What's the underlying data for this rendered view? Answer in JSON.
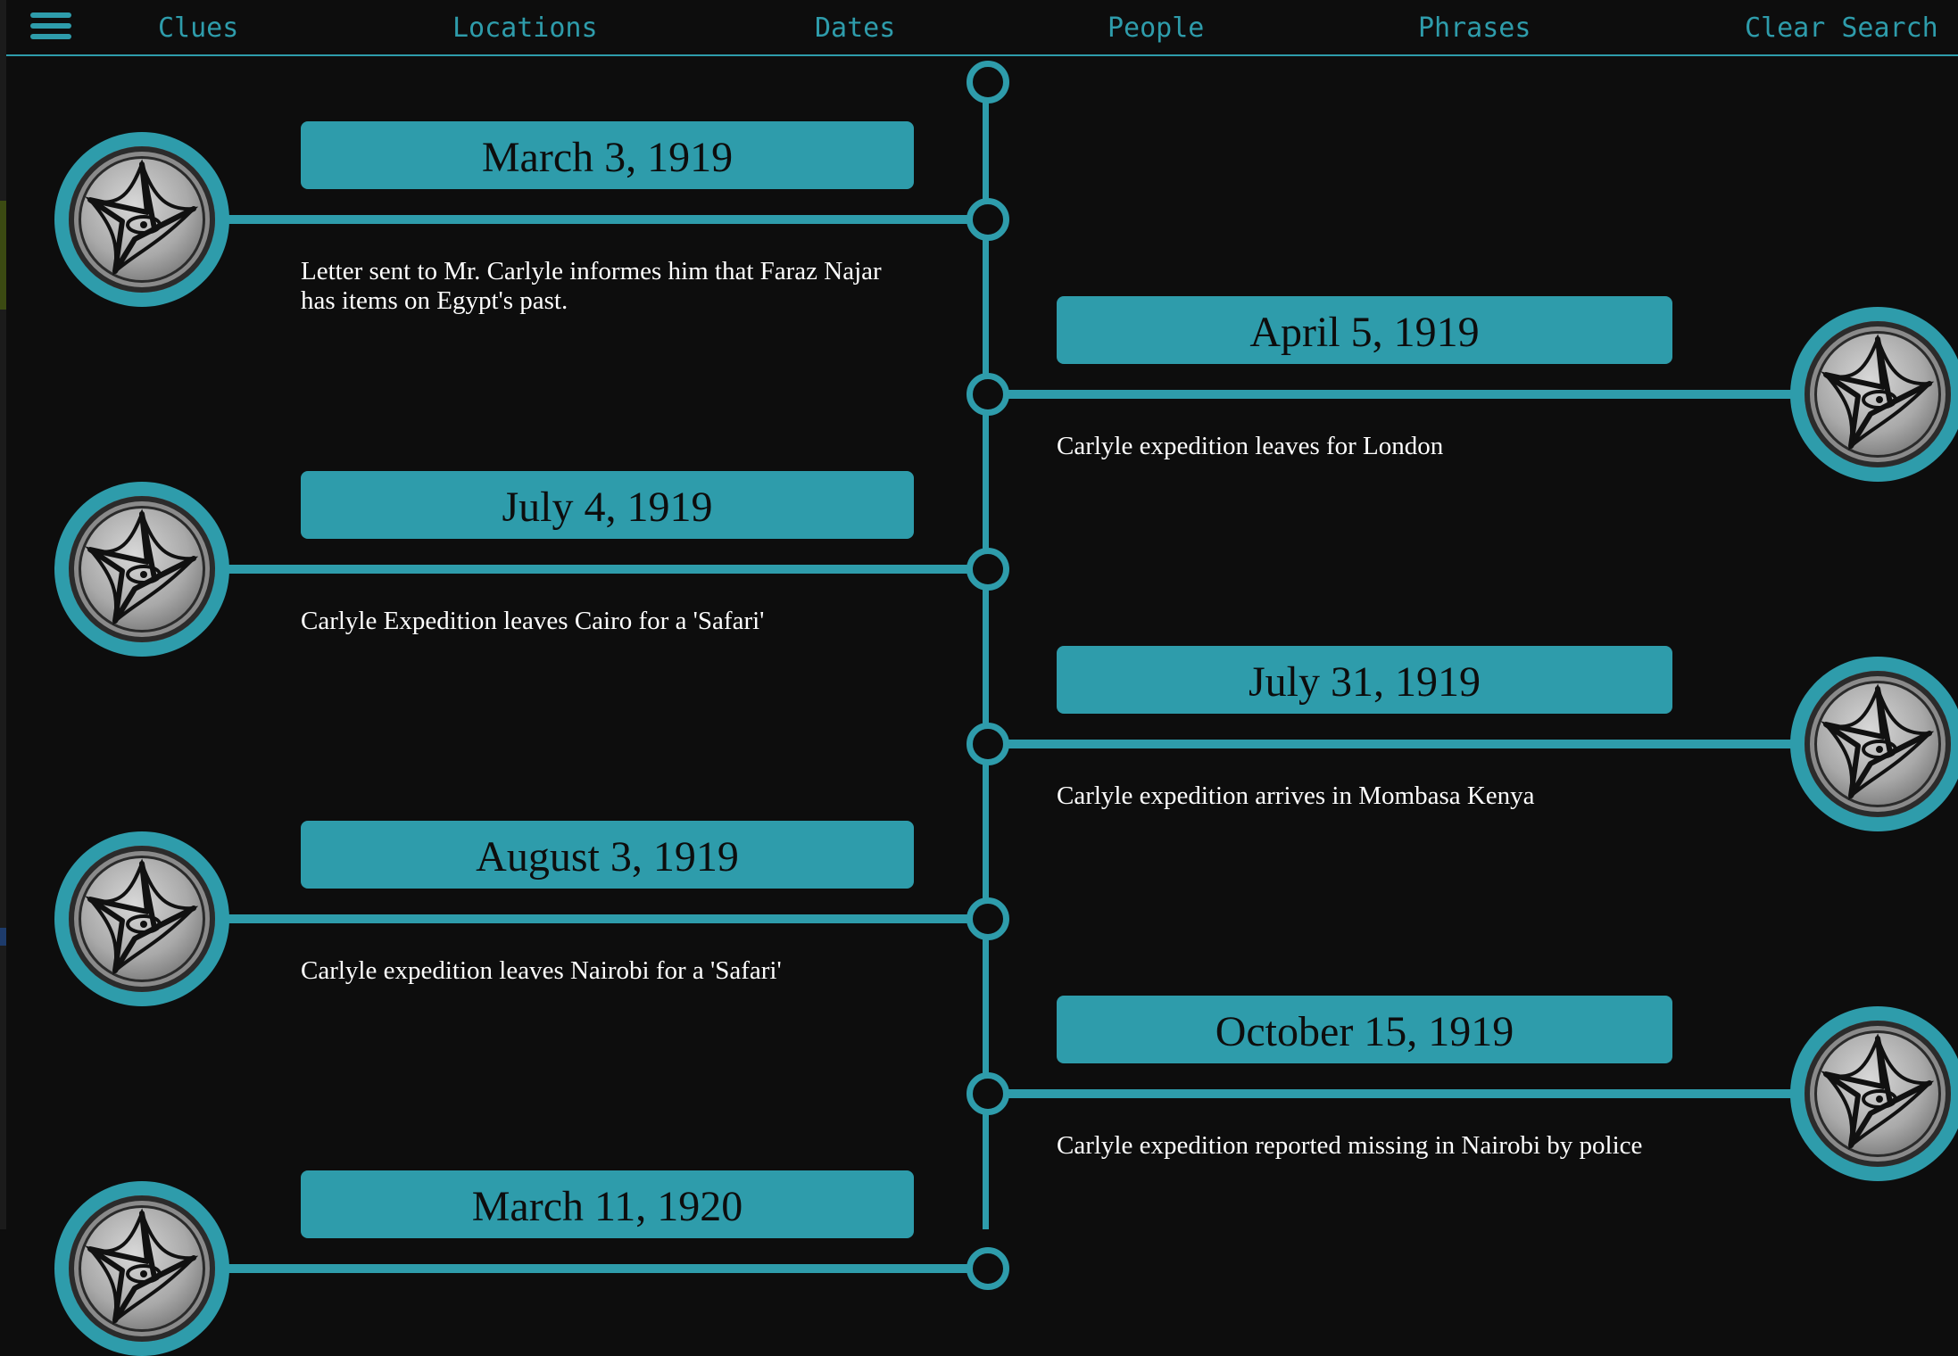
{
  "nav": {
    "items": [
      "Clues",
      "Locations",
      "Dates",
      "People",
      "Phrases",
      "Clear Search"
    ]
  },
  "timeline": {
    "events": [
      {
        "date": "March 3, 1919",
        "text": "Letter sent to Mr. Carlyle informes him that Faraz Najar has items on Egypt's past.",
        "side": "left"
      },
      {
        "date": "April 5, 1919",
        "text": "Carlyle expedition leaves for London",
        "side": "right"
      },
      {
        "date": "July 4, 1919",
        "text": "Carlyle Expedition leaves Cairo for a 'Safari'",
        "side": "left"
      },
      {
        "date": "July 31, 1919",
        "text": "Carlyle expedition arrives in Mombasa Kenya",
        "side": "right"
      },
      {
        "date": "August 3, 1919",
        "text": "Carlyle expedition leaves Nairobi for a 'Safari'",
        "side": "left"
      },
      {
        "date": "October 15, 1919",
        "text": "Carlyle expedition reported missing in Nairobi by police",
        "side": "right"
      },
      {
        "date": "March 11, 1920",
        "text": "",
        "side": "left"
      }
    ]
  },
  "colors": {
    "accent": "#2e9cab",
    "background": "#0d0d0d",
    "text": "#ffffff"
  },
  "icons": {
    "menu": "hamburger-menu-icon",
    "medallion": "elder-sign-medallion-icon"
  }
}
